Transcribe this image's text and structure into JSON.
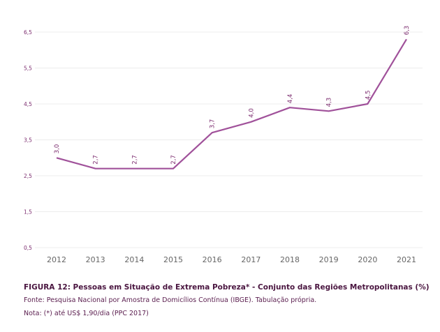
{
  "chart_data": {
    "type": "line",
    "categories": [
      "2012",
      "2013",
      "2014",
      "2015",
      "2016",
      "2017",
      "2018",
      "2019",
      "2020",
      "2021"
    ],
    "series": [
      {
        "name": "Pessoas em Situação de Extrema Pobreza",
        "values": [
          3.0,
          2.7,
          2.7,
          2.7,
          3.7,
          4.0,
          4.4,
          4.3,
          4.5,
          6.3
        ],
        "labels": [
          "3,0",
          "2,7",
          "2,7",
          "2,7",
          "3,7",
          "4,0",
          "4,4",
          "4,3",
          "4,5",
          "6,3"
        ],
        "color": "#a0519a"
      }
    ],
    "yticks": [
      "0,5",
      "1,5",
      "2,5",
      "3,5",
      "4,5",
      "5,5",
      "6,5"
    ],
    "ytick_values": [
      0.5,
      1.5,
      2.5,
      3.5,
      4.5,
      5.5,
      6.5
    ],
    "ylim": [
      0.5,
      6.5
    ],
    "grid": true,
    "colors": {
      "line": "#a0519a",
      "tick_y": "#7b2b6e",
      "tick_x": "#666666",
      "grid": "#ececec"
    }
  },
  "caption": {
    "title": "FIGURA 12: Pessoas em Situação de Extrema Pobreza* - Conjunto das Regiões Metropolitanas (%)",
    "source": "Fonte: Pesquisa Nacional por Amostra de Domicílios Contínua (IBGE). Tabulação própria.",
    "note": "Nota: (*) até US$ 1,90/dia (PPC 2017)"
  }
}
